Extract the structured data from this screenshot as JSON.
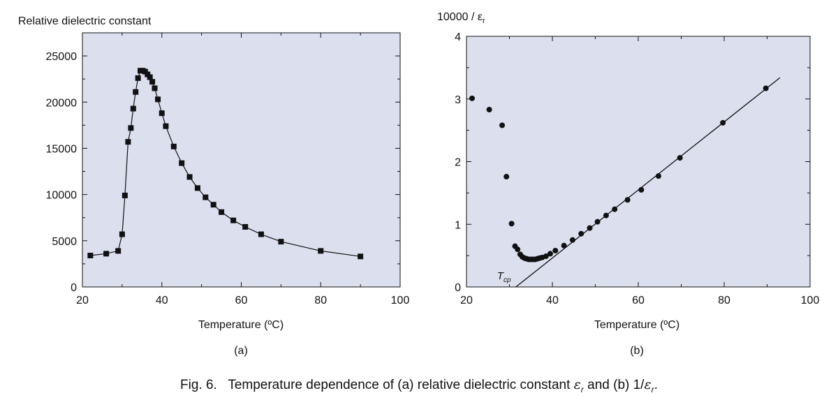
{
  "chart_data": [
    {
      "type": "line",
      "ylabel": "Relative dielectric constant",
      "xlabel": "Temperature (ºC)",
      "panel_label": "(a)",
      "xlim": [
        20,
        100
      ],
      "ylim": [
        0,
        27500
      ],
      "xticks": [
        20,
        40,
        60,
        80,
        100
      ],
      "yticks": [
        0,
        5000,
        10000,
        15000,
        20000,
        25000
      ],
      "background": "#dcdfee",
      "marker": "square",
      "series": [
        {
          "x": [
            22,
            26,
            29,
            30,
            30.7,
            31.5,
            32.2,
            32.8,
            33.4,
            34,
            34.6,
            35.2,
            35.8,
            36.4,
            37,
            37.6,
            38.2,
            39,
            40,
            41,
            43,
            45,
            47,
            49,
            51,
            53,
            55,
            58,
            61,
            65,
            70,
            80,
            90
          ],
          "y": [
            3400,
            3600,
            3900,
            5700,
            9900,
            15700,
            17200,
            19300,
            21100,
            22600,
            23400,
            23400,
            23300,
            23000,
            22700,
            22200,
            21500,
            20300,
            18800,
            17400,
            15200,
            13400,
            11900,
            10700,
            9700,
            8900,
            8100,
            7200,
            6500,
            5700,
            4900,
            3900,
            3300
          ]
        }
      ]
    },
    {
      "type": "scatter",
      "ylabel_main": "10000 / ε",
      "ylabel_sub": "r",
      "xlabel": "Temperature (ºC)",
      "panel_label": "(b)",
      "xlim": [
        20,
        100
      ],
      "ylim": [
        0,
        4
      ],
      "xticks": [
        20,
        40,
        60,
        80,
        100
      ],
      "yticks": [
        0,
        1,
        2,
        3,
        4
      ],
      "background": "#dcdfee",
      "marker": "circle",
      "series": [
        {
          "x": [
            21.3,
            25.3,
            28.3,
            29.3,
            30.5,
            31.3,
            31.9,
            32.5,
            33,
            33.5,
            34,
            34.5,
            35,
            35.5,
            36,
            36.5,
            37,
            37.6,
            38.5,
            39.5,
            40.7,
            42.7,
            44.7,
            46.7,
            48.7,
            50.5,
            52.5,
            54.5,
            57.5,
            60.7,
            64.7,
            69.7,
            79.7,
            89.7
          ],
          "y": [
            3.01,
            2.83,
            2.58,
            1.76,
            1.01,
            0.65,
            0.6,
            0.52,
            0.48,
            0.46,
            0.45,
            0.44,
            0.44,
            0.44,
            0.44,
            0.45,
            0.46,
            0.47,
            0.49,
            0.53,
            0.58,
            0.66,
            0.75,
            0.85,
            0.94,
            1.04,
            1.14,
            1.24,
            1.39,
            1.55,
            1.77,
            2.06,
            2.62,
            3.17
          ]
        }
      ],
      "fit_line": {
        "x": [
          31.5,
          93
        ],
        "y": [
          0,
          3.34
        ]
      },
      "annotation": {
        "main": "T",
        "sub": "cp",
        "x": 32,
        "y": 0.12
      }
    }
  ],
  "caption": {
    "part1": "Fig. 6.   Temperature dependence of (a) relative dielectric constant ",
    "eps": "ε",
    "r1": "r",
    "part2": " and (b) 1/",
    "eps2": "ε",
    "r2": "r",
    "part3": "."
  }
}
